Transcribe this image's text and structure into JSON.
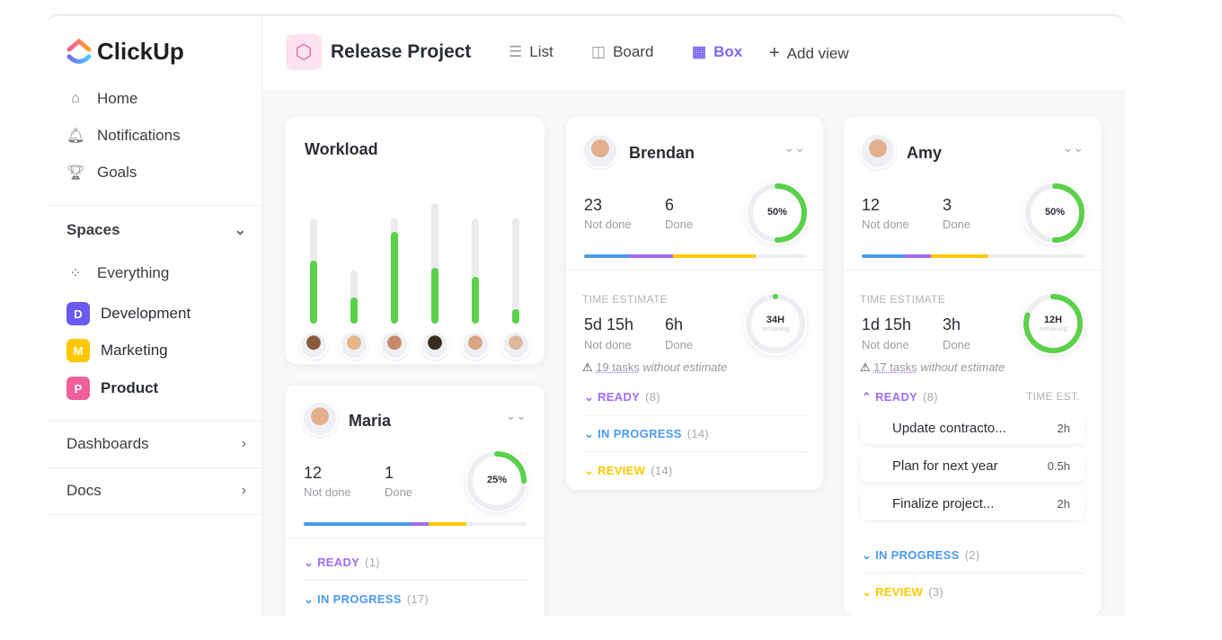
{
  "app": {
    "name": "ClickUp"
  },
  "sidebar": {
    "nav": [
      {
        "label": "Home",
        "icon": "home-icon"
      },
      {
        "label": "Notifications",
        "icon": "bell-icon"
      },
      {
        "label": "Goals",
        "icon": "trophy-icon"
      }
    ],
    "spaces_label": "Spaces",
    "everything": "Everything",
    "spaces": [
      {
        "letter": "D",
        "label": "Development",
        "color": "#6b5bf0"
      },
      {
        "letter": "M",
        "label": "Marketing",
        "color": "#ffc800"
      },
      {
        "letter": "P",
        "label": "Product",
        "color": "#f0609b"
      }
    ],
    "dashboards": "Dashboards",
    "docs": "Docs"
  },
  "header": {
    "project": "Release Project",
    "views": [
      {
        "label": "List"
      },
      {
        "label": "Board"
      },
      {
        "label": "Box",
        "active": true
      }
    ],
    "add_view": "Add view"
  },
  "colors": {
    "green": "#5bd14b",
    "blue": "#4a9bf0",
    "purple": "#a26cf2",
    "yellow": "#ffc800",
    "accent": "#7b68ee"
  },
  "workload": {
    "title": "Workload",
    "bars": [
      {
        "capacity": 0.87,
        "load": 0.52
      },
      {
        "capacity": 0.45,
        "load": 0.22
      },
      {
        "capacity": 0.87,
        "load": 0.76
      },
      {
        "capacity": 1,
        "load": 0.46
      },
      {
        "capacity": 0.87,
        "load": 0.39
      },
      {
        "capacity": 0.87,
        "load": 0.12
      }
    ]
  },
  "people": [
    {
      "name": "Brendan",
      "not_done": "23",
      "done": "6",
      "not_done_label": "Not done",
      "done_label": "Done",
      "percent": "50%",
      "pct": 0.5,
      "progress": [
        0.2,
        0.2,
        0.37
      ],
      "time_label": "TIME ESTIMATE",
      "time_not_done": "5d 15h",
      "time_done": "6h",
      "remaining": "34H",
      "remaining_label": "remaining",
      "remaining_pct": 0,
      "warn_count": "19 tasks",
      "warn_text": "without estimate",
      "groups": [
        {
          "label": "READY",
          "count": "(8)"
        },
        {
          "label": "IN PROGRESS",
          "count": "(14)"
        },
        {
          "label": "REVIEW",
          "count": "(14)"
        }
      ]
    },
    {
      "name": "Amy",
      "not_done": "12",
      "done": "3",
      "not_done_label": "Not done",
      "done_label": "Done",
      "percent": "50%",
      "pct": 0.5,
      "progress": [
        0.19,
        0.12,
        0.26
      ],
      "time_label": "TIME ESTIMATE",
      "time_not_done": "1d 15h",
      "time_done": "3h",
      "remaining": "12H",
      "remaining_label": "remaining",
      "remaining_pct": 0.8,
      "warn_count": "17 tasks",
      "warn_text": "without estimate",
      "groups": [
        {
          "label": "READY",
          "count": "(8)"
        },
        {
          "label": "IN PROGRESS",
          "count": "(2)"
        },
        {
          "label": "REVIEW",
          "count": "(3)"
        }
      ],
      "time_est": "TIME EST.",
      "tasks": [
        {
          "name": "Update contracto...",
          "est": "2h"
        },
        {
          "name": "Plan for next year",
          "est": "0.5h"
        },
        {
          "name": "Finalize project...",
          "est": "2h"
        }
      ]
    },
    {
      "name": "Maria",
      "not_done": "12",
      "done": "1",
      "not_done_label": "Not done",
      "done_label": "Done",
      "percent": "25%",
      "pct": 0.25,
      "progress": [
        0.48,
        0.08,
        0.17
      ],
      "groups": [
        {
          "label": "READY",
          "count": "(1)"
        },
        {
          "label": "IN PROGRESS",
          "count": "(17)"
        }
      ]
    }
  ]
}
